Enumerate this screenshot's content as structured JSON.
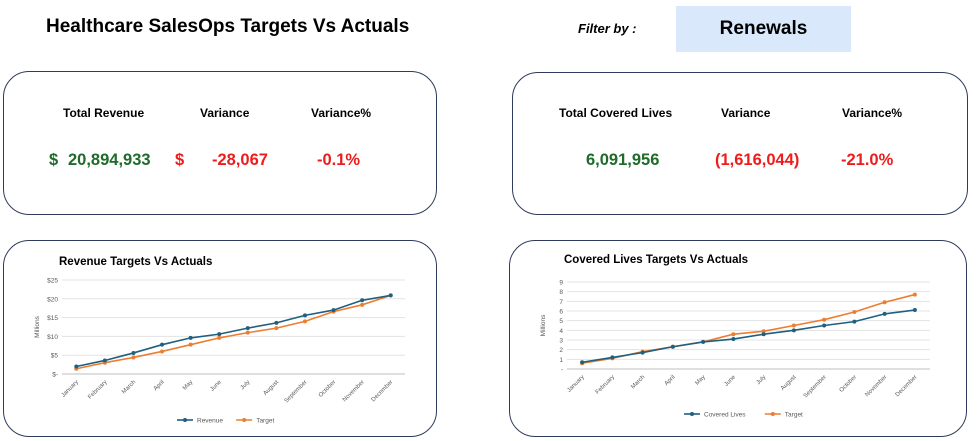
{
  "header": {
    "title": "Healthcare SalesOps Targets Vs Actuals",
    "filter_label": "Filter by :",
    "filter_value": "Renewals"
  },
  "revenue_kpi": {
    "total_label": "Total Revenue",
    "variance_label": "Variance",
    "variance_pct_label": "Variance%",
    "total_currency": "$",
    "total_value": "20,894,933",
    "variance_currency": "$",
    "variance_value": "-28,067",
    "variance_pct_value": "-0.1%"
  },
  "lives_kpi": {
    "total_label": "Total Covered Lives",
    "variance_label": "Variance",
    "variance_pct_label": "Variance%",
    "total_value": "6,091,956",
    "variance_value": "(1,616,044)",
    "variance_pct_value": "-21.0%"
  },
  "colors": {
    "actual": "#1f5f7f",
    "target": "#ed7d31",
    "positive": "#1e6b2a",
    "negative": "#ee1c1c",
    "filter_bg": "#d9e8fb"
  },
  "chart_data": [
    {
      "type": "line",
      "title": "Revenue Targets Vs Actuals",
      "ylabel": "Millions",
      "ylim": [
        0,
        25
      ],
      "y_ticks": [
        "$-",
        "$5",
        "$10",
        "$15",
        "$20",
        "$25"
      ],
      "categories": [
        "January",
        "February",
        "March",
        "April",
        "May",
        "June",
        "July",
        "August",
        "September",
        "October",
        "November",
        "December"
      ],
      "series": [
        {
          "name": "Revenue",
          "values": [
            2.0,
            3.6,
            5.6,
            7.8,
            9.6,
            10.6,
            12.2,
            13.6,
            15.6,
            17.0,
            19.6,
            20.9
          ]
        },
        {
          "name": "Target",
          "values": [
            1.4,
            3.0,
            4.4,
            6.0,
            7.8,
            9.6,
            11.0,
            12.2,
            14.0,
            16.6,
            18.4,
            20.9
          ]
        }
      ],
      "grid": true,
      "legend": "bottom"
    },
    {
      "type": "line",
      "title": "Covered Lives Targets Vs Actuals",
      "ylabel": "Millions",
      "ylim": [
        0,
        9
      ],
      "y_ticks": [
        "-",
        "1",
        "2",
        "3",
        "4",
        "5",
        "6",
        "7",
        "8",
        "9"
      ],
      "categories": [
        "January",
        "February",
        "March",
        "April",
        "May",
        "June",
        "July",
        "August",
        "September",
        "October",
        "November",
        "December"
      ],
      "series": [
        {
          "name": "Covered Lives",
          "values": [
            0.7,
            1.2,
            1.7,
            2.3,
            2.8,
            3.1,
            3.6,
            4.0,
            4.5,
            4.9,
            5.7,
            6.1
          ]
        },
        {
          "name": "Target",
          "values": [
            0.6,
            1.1,
            1.8,
            2.3,
            2.8,
            3.6,
            3.9,
            4.5,
            5.1,
            5.9,
            6.9,
            7.7
          ]
        }
      ],
      "grid": true,
      "legend": "bottom"
    }
  ]
}
